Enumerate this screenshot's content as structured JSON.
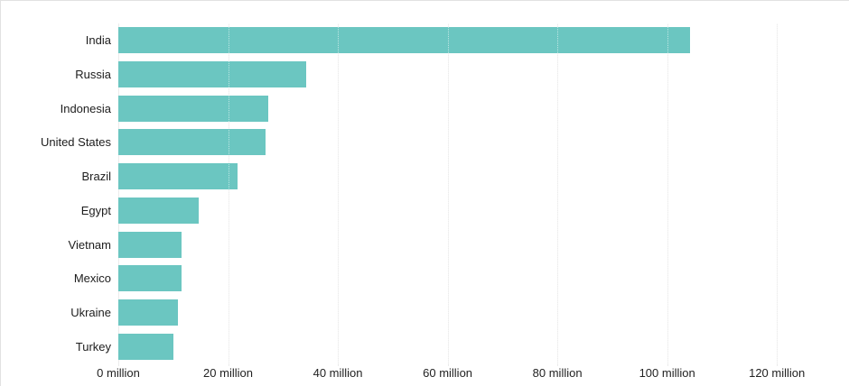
{
  "chart_data": {
    "type": "bar",
    "orientation": "horizontal",
    "title": "",
    "xlabel": "",
    "ylabel": "",
    "unit": "million",
    "categories": [
      "India",
      "Russia",
      "Indonesia",
      "United States",
      "Brazil",
      "Egypt",
      "Vietnam",
      "Mexico",
      "Ukraine",
      "Turkey"
    ],
    "values": [
      104.2,
      34.3,
      27.3,
      26.8,
      21.8,
      14.7,
      11.6,
      11.5,
      10.8,
      10.0
    ],
    "x_ticks": [
      {
        "value": 0,
        "label": "0 million"
      },
      {
        "value": 20,
        "label": "20 million"
      },
      {
        "value": 40,
        "label": "40 million"
      },
      {
        "value": 60,
        "label": "60 million"
      },
      {
        "value": 80,
        "label": "80 million"
      },
      {
        "value": 100,
        "label": "100 million"
      },
      {
        "value": 120,
        "label": "120 million"
      }
    ],
    "xlim": [
      0,
      133.3
    ],
    "grid": true,
    "legend": false,
    "bar_color": "#6bc6c1",
    "grid_color": "#ececec",
    "background_color": "#ffffff",
    "text_color": "#222222"
  }
}
